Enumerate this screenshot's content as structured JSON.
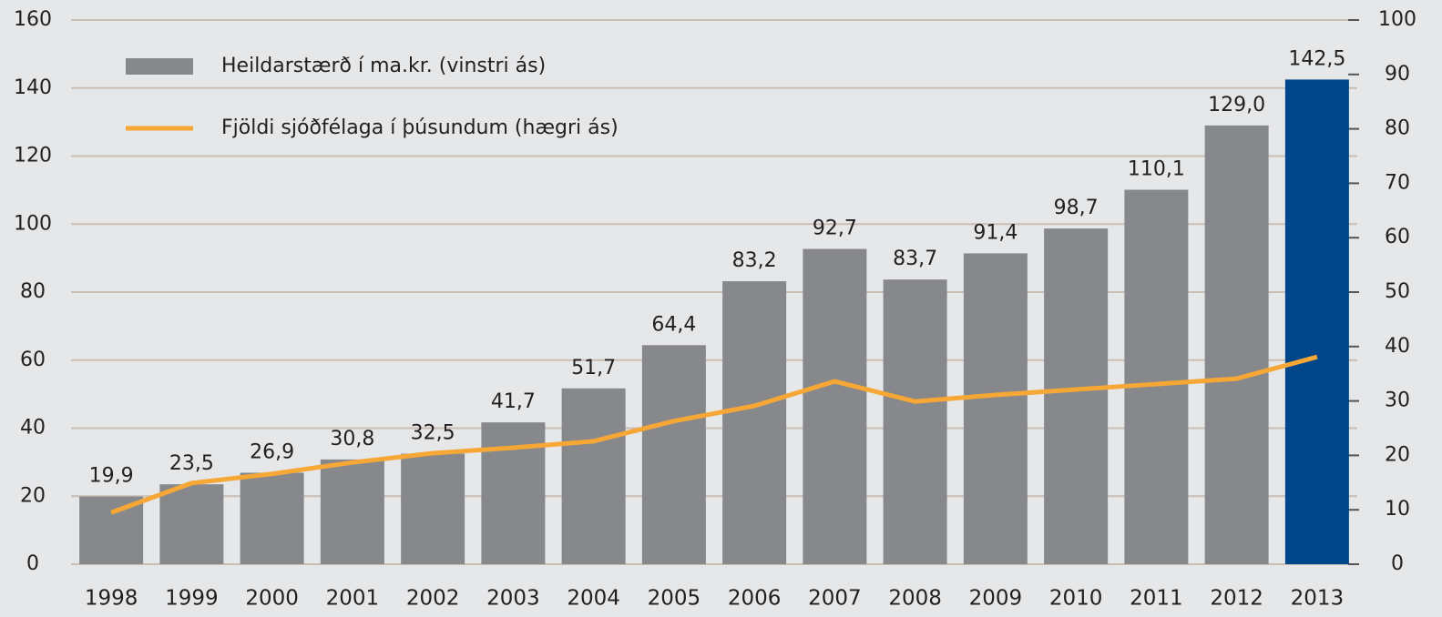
{
  "chart_data": {
    "type": "bar-line",
    "categories": [
      "1998",
      "1999",
      "2000",
      "2001",
      "2002",
      "2003",
      "2004",
      "2005",
      "2006",
      "2007",
      "2008",
      "2009",
      "2010",
      "2011",
      "2012",
      "2013"
    ],
    "series": [
      {
        "name": "Heildarstærð í ma.kr. (vinstri ás)",
        "type": "bar",
        "axis": "y",
        "color": "#87888c",
        "colors": [
          "#87888c",
          "#87888c",
          "#87888c",
          "#87888c",
          "#87888c",
          "#87888c",
          "#87888c",
          "#87888c",
          "#87888c",
          "#87888c",
          "#87888c",
          "#87888c",
          "#87888c",
          "#87888c",
          "#87888c",
          "#00468b"
        ],
        "values": [
          19.9,
          23.5,
          26.9,
          30.8,
          32.5,
          41.7,
          51.7,
          64.4,
          83.2,
          92.7,
          83.7,
          91.4,
          98.7,
          110.1,
          129.0,
          142.5
        ],
        "value_labels": [
          "19,9",
          "23,5",
          "26,9",
          "30,8",
          "32,5",
          "41,7",
          "51,7",
          "64,4",
          "83,2",
          "92,7",
          "83,7",
          "91,4",
          "98,7",
          "110,1",
          "129,0",
          "142,5"
        ]
      },
      {
        "name": "Fjöldi sjóðfélaga í þúsundum (hægri ás)",
        "type": "line",
        "axis": "y2",
        "color": "#f6a735",
        "values": [
          9.5,
          14.9,
          16.6,
          18.7,
          20.4,
          21.4,
          22.6,
          26.3,
          29.1,
          33.6,
          29.9,
          31.1,
          32.1,
          33.1,
          34.1,
          38.1
        ]
      }
    ],
    "ylim": [
      0,
      160
    ],
    "yticks": [
      0,
      20,
      40,
      60,
      80,
      100,
      120,
      140,
      160
    ],
    "y2lim": [
      0,
      100
    ],
    "y2ticks": [
      0,
      10,
      20,
      30,
      40,
      50,
      60,
      70,
      80,
      90,
      100
    ],
    "grid": true
  }
}
